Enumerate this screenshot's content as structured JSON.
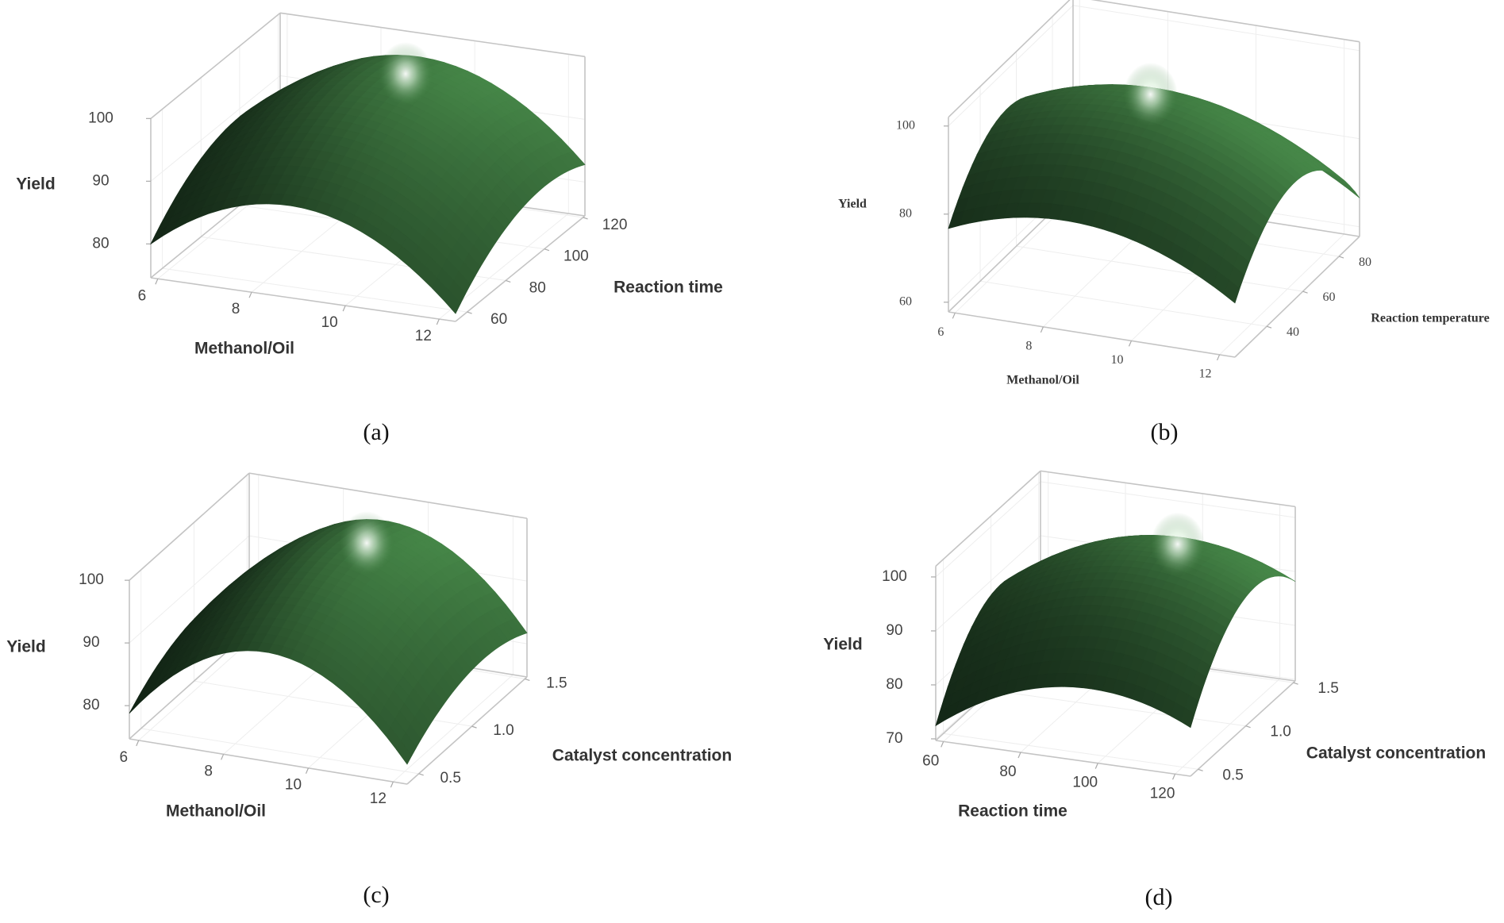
{
  "chart_data": [
    {
      "id": "a",
      "type": "surface",
      "caption": "(a)",
      "x": {
        "label": "Methanol/Oil",
        "ticks": [
          6,
          8,
          10,
          12
        ],
        "range": [
          5.85,
          12.35
        ]
      },
      "y": {
        "label": "Reaction time",
        "ticks": [
          60,
          80,
          100,
          120
        ],
        "range": [
          54,
          121
        ]
      },
      "z": {
        "label": "Yield",
        "ticks": [
          80,
          90,
          100
        ],
        "range": [
          74.6,
          100
        ]
      },
      "model": {
        "form": "z = peak_z - kx*((x-peak_x)/xspan)^2 - ky*((y-peak_y)/yspan)^2",
        "peak_x": 8.8,
        "peak_y": 100,
        "peak_z": 98,
        "kx": 45,
        "ky": 18.5
      },
      "surface_color": "#1e3d22"
    },
    {
      "id": "b",
      "type": "surface",
      "caption": "(b)",
      "x": {
        "label": "Methanol/Oil",
        "ticks": [
          6,
          8,
          10,
          12
        ],
        "range": [
          5.85,
          12.35
        ]
      },
      "y": {
        "label": "Reaction temperature",
        "ticks": [
          40,
          60,
          80
        ],
        "range": [
          22.4,
          91.4
        ]
      },
      "z": {
        "label": "Yield",
        "ticks": [
          60,
          80,
          100
        ],
        "range": [
          57.8,
          102
        ]
      },
      "model": {
        "form": "z = peak_z - kx*((x-peak_x)/xspan)^2 - ky*((y-peak_y)/yspan)^2",
        "peak_x": 8.5,
        "peak_y": 55,
        "peak_z": 97,
        "kx": 36,
        "ky": 64
      },
      "surface_color": "#1e3d22"
    },
    {
      "id": "c",
      "type": "surface",
      "caption": "(c)",
      "x": {
        "label": "Methanol/Oil",
        "ticks": [
          6,
          8,
          10,
          12
        ],
        "range": [
          5.78,
          12.33
        ]
      },
      "y": {
        "label": "Catalyst concentration",
        "ticks": [
          "0.5",
          "1.0",
          "1.5"
        ],
        "range": [
          0.39,
          1.52
        ]
      },
      "z": {
        "label": "Yield",
        "ticks": [
          80,
          90,
          100
        ],
        "range": [
          74.7,
          100
        ]
      },
      "model": {
        "form": "z = peak_z - kx*((x-peak_x)/xspan)^2 - ky*((y-peak_y)/yspan)^2",
        "peak_x": 9,
        "peak_y": 1.1,
        "peak_z": 98,
        "kx": 55,
        "ky": 15
      },
      "surface_color": "#1e3d22"
    },
    {
      "id": "d",
      "type": "surface",
      "caption": "(d)",
      "x": {
        "label": "Reaction time",
        "ticks": [
          60,
          80,
          100,
          120
        ],
        "range": [
          58,
          124
        ]
      },
      "y": {
        "label": "Catalyst concentration",
        "ticks": [
          "0.5",
          "1.0",
          "1.5"
        ],
        "range": [
          0.42,
          1.52
        ]
      },
      "z": {
        "label": "Yield",
        "ticks": [
          70,
          80,
          90,
          100
        ],
        "range": [
          69.7,
          102
        ]
      },
      "model": {
        "form": "z = peak_z - kx*((x-peak_x)/xspan)^2 - ky*((y-peak_y)/yspan)^2",
        "peak_x": 98,
        "peak_y": 1.1,
        "peak_z": 98.5,
        "kx": 29.5,
        "ky": 39.8
      },
      "surface_color": "#1e3d22"
    }
  ]
}
